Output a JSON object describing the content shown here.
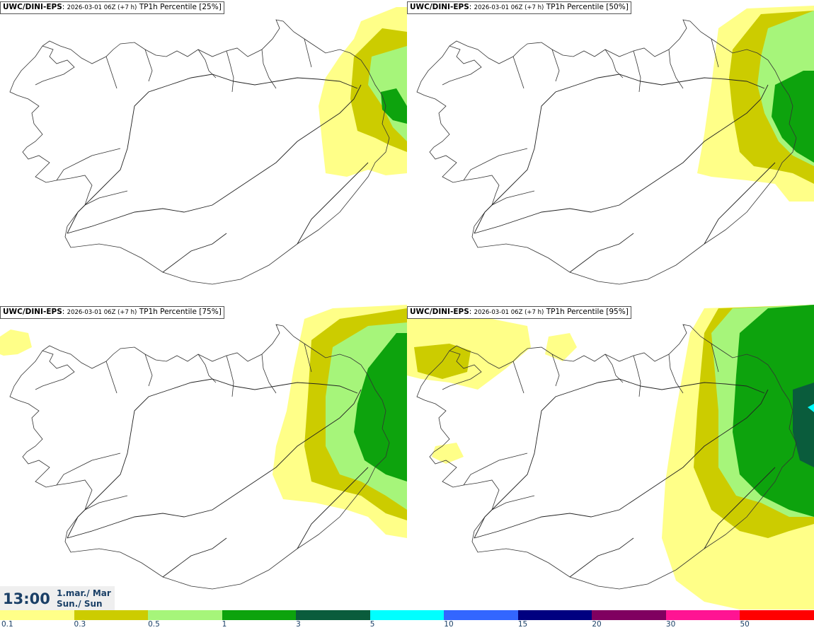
{
  "panels": [
    {
      "source": "UWC/DINI-EPS",
      "run": "2026-03-01 06Z (+7 h)",
      "field": "TP1h Percentile [25%]"
    },
    {
      "source": "UWC/DINI-EPS",
      "run": "2026-03-01 06Z (+7 h)",
      "field": "TP1h Percentile [50%]"
    },
    {
      "source": "UWC/DINI-EPS",
      "run": "2026-03-01 06Z (+7 h)",
      "field": "TP1h Percentile [75%]"
    },
    {
      "source": "UWC/DINI-EPS",
      "run": "2026-03-01 06Z (+7 h)",
      "field": "TP1h Percentile [95%]"
    }
  ],
  "valid_time": {
    "time": "13:00",
    "date_line1": "1.mar./ Mar",
    "date_line2": "Sun./ Sun"
  },
  "legend": {
    "colors": [
      "#ffff88",
      "#cccc00",
      "#a6f57a",
      "#0da30d",
      "#0a5c3c",
      "#00ffff",
      "#3366ff",
      "#000080",
      "#800060",
      "#ff1493",
      "#ff0000"
    ],
    "labels": [
      "0.1",
      "0.3",
      "0.5",
      "1",
      "3",
      "5",
      "10",
      "15",
      "20",
      "30",
      "50"
    ]
  }
}
